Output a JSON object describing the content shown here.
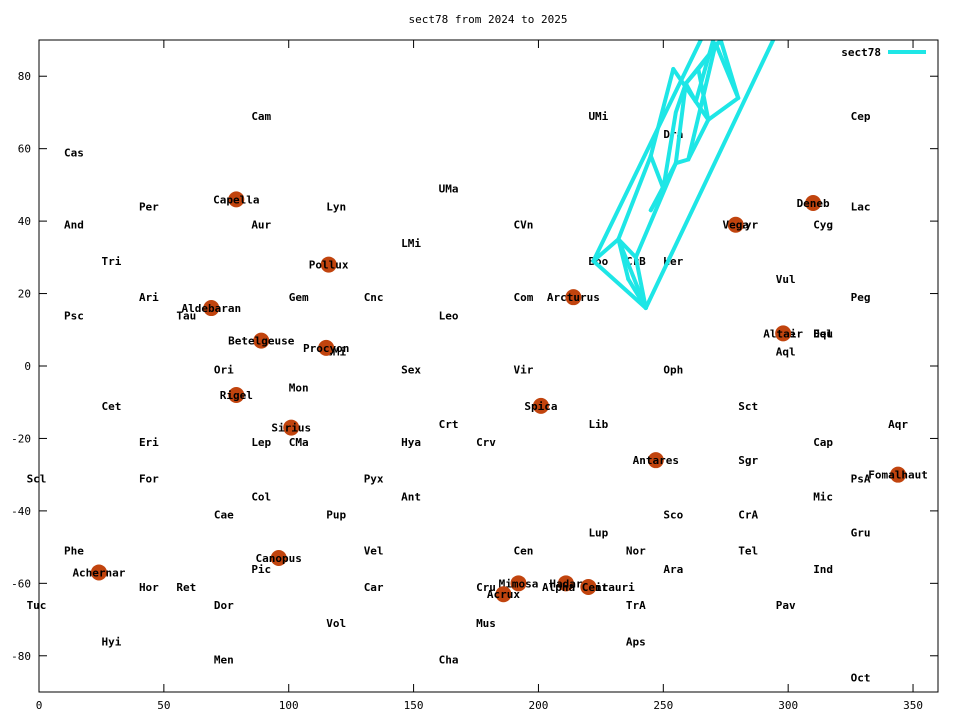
{
  "chart_data": {
    "type": "scatter",
    "title": "sect78 from 2024 to 2025",
    "xlabel": "",
    "ylabel": "",
    "xlim": [
      0,
      360
    ],
    "ylim": [
      -90,
      90
    ],
    "xticks": [
      0,
      50,
      100,
      150,
      200,
      250,
      300,
      350
    ],
    "yticks": [
      -80,
      -60,
      -40,
      -20,
      0,
      20,
      40,
      60,
      80
    ],
    "grid": false,
    "legend_position": "top-right",
    "colors": {
      "path": "#1ee6e6",
      "star": "#c1440e",
      "axis": "#000000"
    },
    "constellations": [
      {
        "name": "Cam",
        "ra": 89,
        "dec": 69
      },
      {
        "name": "UMi",
        "ra": 224,
        "dec": 69
      },
      {
        "name": "Cep",
        "ra": 329,
        "dec": 69
      },
      {
        "name": "Cas",
        "ra": 14,
        "dec": 59
      },
      {
        "name": "Dra",
        "ra": 254,
        "dec": 64
      },
      {
        "name": "UMa",
        "ra": 164,
        "dec": 49
      },
      {
        "name": "Per",
        "ra": 44,
        "dec": 44
      },
      {
        "name": "Lyn",
        "ra": 119,
        "dec": 44
      },
      {
        "name": "Lac",
        "ra": 329,
        "dec": 44
      },
      {
        "name": "And",
        "ra": 14,
        "dec": 39
      },
      {
        "name": "Aur",
        "ra": 89,
        "dec": 39
      },
      {
        "name": "CVn",
        "ra": 194,
        "dec": 39
      },
      {
        "name": "Lyr",
        "ra": 284,
        "dec": 39
      },
      {
        "name": "Cyg",
        "ra": 314,
        "dec": 39
      },
      {
        "name": "LMi",
        "ra": 149,
        "dec": 34
      },
      {
        "name": "Tri",
        "ra": 29,
        "dec": 29
      },
      {
        "name": "Boo",
        "ra": 224,
        "dec": 29
      },
      {
        "name": "CrB",
        "ra": 239,
        "dec": 29
      },
      {
        "name": "Her",
        "ra": 254,
        "dec": 29
      },
      {
        "name": "Vul",
        "ra": 299,
        "dec": 24
      },
      {
        "name": "Ari",
        "ra": 44,
        "dec": 19
      },
      {
        "name": "Gem",
        "ra": 104,
        "dec": 19
      },
      {
        "name": "Cnc",
        "ra": 134,
        "dec": 19
      },
      {
        "name": "Com",
        "ra": 194,
        "dec": 19
      },
      {
        "name": "Peg",
        "ra": 329,
        "dec": 19
      },
      {
        "name": "Psc",
        "ra": 14,
        "dec": 14
      },
      {
        "name": "Tau",
        "ra": 59,
        "dec": 14
      },
      {
        "name": "Leo",
        "ra": 164,
        "dec": 14
      },
      {
        "name": "Sge",
        "ra": 299,
        "dec": 9
      },
      {
        "name": "Del",
        "ra": 314,
        "dec": 9
      },
      {
        "name": "Equ",
        "ra": 314,
        "dec": 9
      },
      {
        "name": "CMi",
        "ra": 119,
        "dec": 4
      },
      {
        "name": "Aql",
        "ra": 299,
        "dec": 4
      },
      {
        "name": "Ori",
        "ra": 74,
        "dec": -1
      },
      {
        "name": "Sex",
        "ra": 149,
        "dec": -1
      },
      {
        "name": "Vir",
        "ra": 194,
        "dec": -1
      },
      {
        "name": "Oph",
        "ra": 254,
        "dec": -1
      },
      {
        "name": "Mon",
        "ra": 104,
        "dec": -6
      },
      {
        "name": "Cet",
        "ra": 29,
        "dec": -11
      },
      {
        "name": "Sct",
        "ra": 284,
        "dec": -11
      },
      {
        "name": "Crt",
        "ra": 164,
        "dec": -16
      },
      {
        "name": "Lib",
        "ra": 224,
        "dec": -16
      },
      {
        "name": "Aqr",
        "ra": 344,
        "dec": -16
      },
      {
        "name": "Eri",
        "ra": 44,
        "dec": -21
      },
      {
        "name": "Lep",
        "ra": 89,
        "dec": -21
      },
      {
        "name": "CMa",
        "ra": 104,
        "dec": -21
      },
      {
        "name": "Hya",
        "ra": 149,
        "dec": -21
      },
      {
        "name": "Crv",
        "ra": 179,
        "dec": -21
      },
      {
        "name": "Cap",
        "ra": 314,
        "dec": -21
      },
      {
        "name": "Sgr",
        "ra": 284,
        "dec": -26
      },
      {
        "name": "Scl",
        "ra": -1,
        "dec": -31
      },
      {
        "name": "For",
        "ra": 44,
        "dec": -31
      },
      {
        "name": "Pyx",
        "ra": 134,
        "dec": -31
      },
      {
        "name": "PsA",
        "ra": 329,
        "dec": -31
      },
      {
        "name": "Col",
        "ra": 89,
        "dec": -36
      },
      {
        "name": "Ant",
        "ra": 149,
        "dec": -36
      },
      {
        "name": "Mic",
        "ra": 314,
        "dec": -36
      },
      {
        "name": "Cae",
        "ra": 74,
        "dec": -41
      },
      {
        "name": "Pup",
        "ra": 119,
        "dec": -41
      },
      {
        "name": "Sco",
        "ra": 254,
        "dec": -41
      },
      {
        "name": "CrA",
        "ra": 284,
        "dec": -41
      },
      {
        "name": "Lup",
        "ra": 224,
        "dec": -46
      },
      {
        "name": "Gru",
        "ra": 329,
        "dec": -46
      },
      {
        "name": "Phe",
        "ra": 14,
        "dec": -51
      },
      {
        "name": "Vel",
        "ra": 134,
        "dec": -51
      },
      {
        "name": "Cen",
        "ra": 194,
        "dec": -51
      },
      {
        "name": "Nor",
        "ra": 239,
        "dec": -51
      },
      {
        "name": "Tel",
        "ra": 284,
        "dec": -51
      },
      {
        "name": "Pic",
        "ra": 89,
        "dec": -56
      },
      {
        "name": "Ara",
        "ra": 254,
        "dec": -56
      },
      {
        "name": "Ind",
        "ra": 314,
        "dec": -56
      },
      {
        "name": "Hor",
        "ra": 44,
        "dec": -61
      },
      {
        "name": "Ret",
        "ra": 59,
        "dec": -61
      },
      {
        "name": "Car",
        "ra": 134,
        "dec": -61
      },
      {
        "name": "Cru",
        "ra": 179,
        "dec": -61
      },
      {
        "name": "Cir",
        "ra": 224,
        "dec": -61
      },
      {
        "name": "Tuc",
        "ra": -1,
        "dec": -66
      },
      {
        "name": "Dor",
        "ra": 74,
        "dec": -66
      },
      {
        "name": "TrA",
        "ra": 239,
        "dec": -66
      },
      {
        "name": "Pav",
        "ra": 299,
        "dec": -66
      },
      {
        "name": "Vol",
        "ra": 119,
        "dec": -71
      },
      {
        "name": "Mus",
        "ra": 179,
        "dec": -71
      },
      {
        "name": "Hyi",
        "ra": 29,
        "dec": -76
      },
      {
        "name": "Aps",
        "ra": 239,
        "dec": -76
      },
      {
        "name": "Men",
        "ra": 74,
        "dec": -81
      },
      {
        "name": "Cha",
        "ra": 164,
        "dec": -81
      },
      {
        "name": "Oct",
        "ra": 329,
        "dec": -86
      }
    ],
    "stars": [
      {
        "name": "Capella",
        "ra": 79,
        "dec": 46
      },
      {
        "name": "Deneb",
        "ra": 310,
        "dec": 45
      },
      {
        "name": "Vega",
        "ra": 279,
        "dec": 39
      },
      {
        "name": "Pollux",
        "ra": 116,
        "dec": 28
      },
      {
        "name": "Arcturus",
        "ra": 214,
        "dec": 19
      },
      {
        "name": "Aldebaran",
        "ra": 69,
        "dec": 16
      },
      {
        "name": "Altair",
        "ra": 298,
        "dec": 9
      },
      {
        "name": "Betelgeuse",
        "ra": 89,
        "dec": 7
      },
      {
        "name": "Procyon",
        "ra": 115,
        "dec": 5
      },
      {
        "name": "Rigel",
        "ra": 79,
        "dec": -8
      },
      {
        "name": "Spica",
        "ra": 201,
        "dec": -11
      },
      {
        "name": "Sirius",
        "ra": 101,
        "dec": -17
      },
      {
        "name": "Antares",
        "ra": 247,
        "dec": -26
      },
      {
        "name": "Fomalhaut",
        "ra": 344,
        "dec": -30
      },
      {
        "name": "Canopus",
        "ra": 96,
        "dec": -53
      },
      {
        "name": "Achernar",
        "ra": 24,
        "dec": -57
      },
      {
        "name": "Mimosa",
        "ra": 192,
        "dec": -60
      },
      {
        "name": "Hadar",
        "ra": 211,
        "dec": -60
      },
      {
        "name": "Alpha Centauri",
        "ra": 220,
        "dec": -61
      },
      {
        "name": "Acrux",
        "ra": 186,
        "dec": -63
      }
    ],
    "series": [
      {
        "name": "sect78",
        "segments": [
          [
            [
              222,
              29
            ],
            [
              243,
              16
            ],
            [
              294,
              90
            ]
          ],
          [
            [
              222,
              29
            ],
            [
              265,
              90
            ]
          ],
          [
            [
              222,
              29
            ],
            [
              232,
              35
            ],
            [
              243,
              16
            ]
          ],
          [
            [
              232,
              35
            ],
            [
              245,
              58
            ]
          ],
          [
            [
              232,
              35
            ],
            [
              236,
              24
            ]
          ],
          [
            [
              236,
              24
            ],
            [
              243,
              16
            ]
          ],
          [
            [
              232,
              35
            ],
            [
              239,
              30
            ]
          ],
          [
            [
              239,
              30
            ],
            [
              243,
              16
            ]
          ],
          [
            [
              239,
              30
            ],
            [
              255,
              56
            ]
          ],
          [
            [
              245,
              58
            ],
            [
              250,
              49
            ],
            [
              255,
              56
            ],
            [
              259,
              78
            ]
          ],
          [
            [
              245,
              58
            ],
            [
              254,
              82
            ]
          ],
          [
            [
              254,
              82
            ],
            [
              263,
              73
            ],
            [
              270,
              90
            ]
          ],
          [
            [
              259,
              78
            ],
            [
              273,
              90
            ]
          ],
          [
            [
              250,
              49
            ],
            [
              245,
              43
            ]
          ],
          [
            [
              255,
              56
            ],
            [
              245,
              43
            ]
          ],
          [
            [
              259,
              78
            ],
            [
              255,
              70
            ],
            [
              250,
              49
            ]
          ],
          [
            [
              263,
              73
            ],
            [
              259,
              78
            ]
          ],
          [
            [
              268,
              68
            ],
            [
              260,
              57
            ],
            [
              255,
              56
            ]
          ],
          [
            [
              264,
              82
            ],
            [
              259,
              78
            ]
          ],
          [
            [
              268,
              68
            ],
            [
              264,
              82
            ],
            [
              273,
              90
            ]
          ],
          [
            [
              280,
              74
            ],
            [
              271,
              89
            ]
          ],
          [
            [
              280,
              74
            ],
            [
              273,
              90
            ]
          ],
          [
            [
              280,
              74
            ],
            [
              268,
              68
            ]
          ],
          [
            [
              268,
              68
            ],
            [
              263,
              73
            ]
          ],
          [
            [
              260,
              57
            ],
            [
              271,
              89
            ]
          ]
        ]
      }
    ]
  }
}
